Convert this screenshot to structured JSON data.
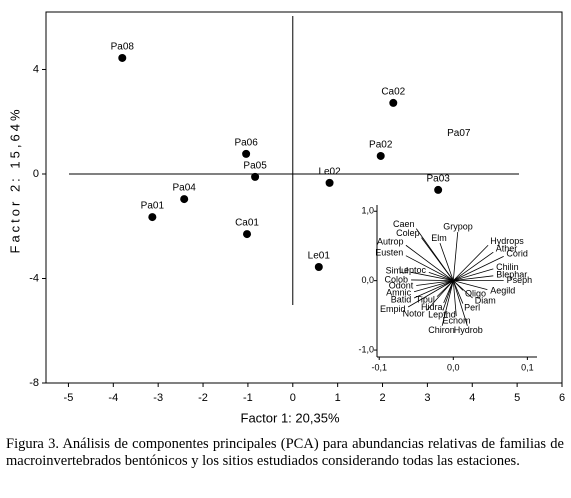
{
  "chart_data": [
    {
      "type": "scatter",
      "x_label": "Factor 1: 20,35%",
      "y_label": "Factor 2: 15,64%",
      "xlim": [
        -5.5,
        6
      ],
      "ylim": [
        -8,
        6.2
      ],
      "xticks": [
        -5,
        -4,
        -3,
        -2,
        -1,
        0,
        1,
        2,
        3,
        4,
        5,
        6
      ],
      "yticks": [
        -8,
        -4,
        0,
        4
      ],
      "reference_lines": {
        "x": 0,
        "y": 0
      },
      "color": "#000000",
      "points": {
        "labels": [
          "Pa08",
          "Ca02",
          "Pa06",
          "Pa05",
          "Le02",
          "Pa02",
          "Pa03",
          "Pa04",
          "Pa01",
          "Ca01",
          "Le01"
        ],
        "x": [
          -3.8,
          2.24,
          -1.04,
          -0.84,
          0.82,
          1.96,
          3.24,
          -2.42,
          -3.13,
          -1.02,
          0.58
        ],
        "y": [
          4.44,
          2.72,
          0.77,
          -0.11,
          -0.34,
          0.69,
          -0.61,
          -0.96,
          -1.65,
          -2.3,
          -3.56
        ]
      },
      "annotations": [
        {
          "text": "Pa07",
          "x": 3.7,
          "y": 1.55
        }
      ]
    },
    {
      "type": "biplot",
      "xlim": [
        -0.103,
        0.113
      ],
      "ylim": [
        -1.1,
        1.09
      ],
      "xticks": [
        {
          "value": -0.1,
          "label": "-0,1"
        },
        {
          "value": 0,
          "label": "0,0"
        },
        {
          "value": 0.1,
          "label": "0,1"
        }
      ],
      "yticks": [
        {
          "value": -1.0,
          "label": "-1,0"
        },
        {
          "value": 0,
          "label": "0,0"
        },
        {
          "value": 1.0,
          "label": "1,0"
        }
      ],
      "color": "#000000",
      "vectors": {
        "labels": [
          "Caen",
          "Colep",
          "Grypop",
          "Elm",
          "Autrop",
          "Hydrops",
          "Eusten",
          "Ather",
          "Corid",
          "Chilin",
          "Simul",
          "Leptoc",
          "Blephar",
          "Colob",
          "Pseph",
          "Odont",
          "Aegild",
          "Amnic",
          "Oligo",
          "Batid",
          "Tipul",
          "Diam",
          "Empid",
          "Hidra",
          "Perl",
          "Notor",
          "Lepthd",
          "Ecnom",
          "Hydrob",
          "Chiron"
        ],
        "x": [
          -0.05,
          -0.043,
          0.006,
          -0.018,
          -0.064,
          0.047,
          -0.064,
          0.054,
          0.068,
          0.054,
          -0.057,
          -0.033,
          0.054,
          -0.057,
          0.068,
          -0.05,
          0.046,
          -0.053,
          0.013,
          -0.053,
          -0.022,
          0.026,
          -0.061,
          -0.013,
          0.013,
          -0.036,
          -0.014,
          0.004,
          0.019,
          -0.015
        ],
        "y": [
          0.75,
          0.62,
          0.7,
          0.54,
          0.51,
          0.51,
          0.36,
          0.41,
          0.35,
          0.17,
          0.12,
          0.12,
          0.07,
          0.01,
          0.0,
          -0.07,
          -0.13,
          -0.16,
          -0.14,
          -0.25,
          -0.23,
          -0.25,
          -0.38,
          -0.32,
          -0.33,
          -0.43,
          -0.43,
          -0.51,
          -0.65,
          -0.65
        ]
      }
    }
  ],
  "caption": "Figura 3. Análisis de componentes principales (PCA) para abundancias relativas de familias de macroinvertebrados bentónicos y los sitios estudiados considerando todas las estaciones."
}
